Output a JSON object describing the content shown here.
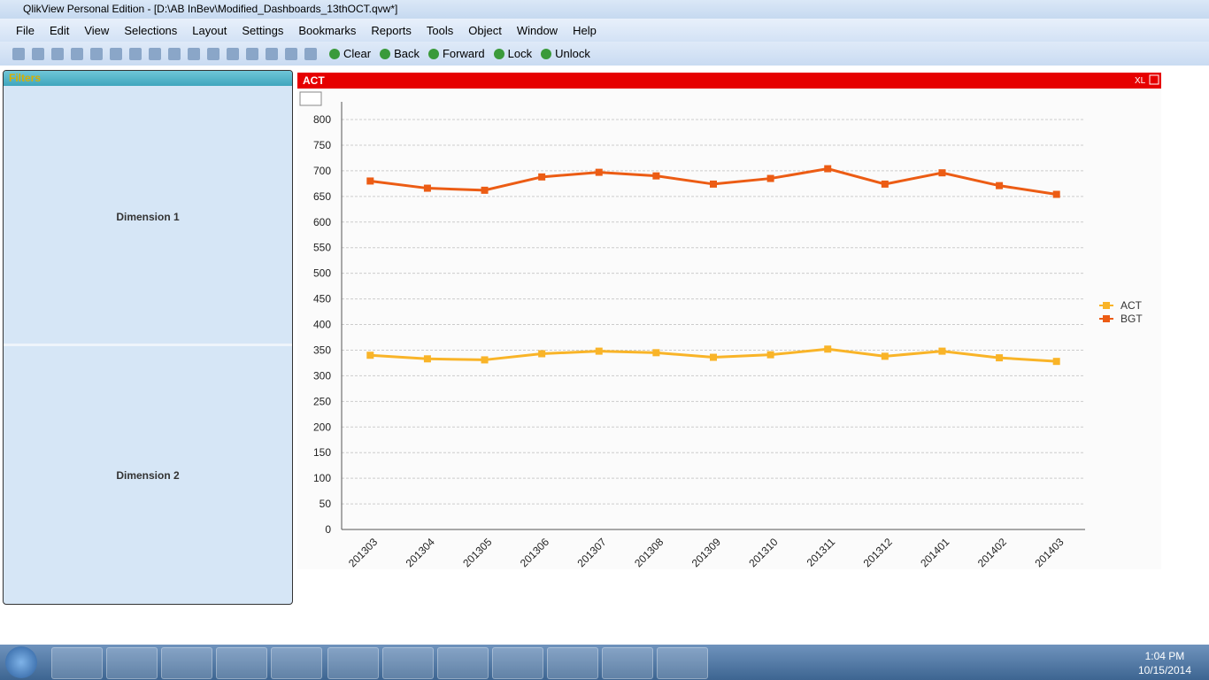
{
  "window": {
    "title": "QlikView Personal Edition - [D:\\AB InBev\\Modified_Dashboards_13thOCT.qvw*]"
  },
  "menu": [
    "File",
    "Edit",
    "View",
    "Selections",
    "Layout",
    "Settings",
    "Bookmarks",
    "Reports",
    "Tools",
    "Object",
    "Window",
    "Help"
  ],
  "toolbar": [
    "Clear",
    "Back",
    "Forward",
    "Lock",
    "Unlock"
  ],
  "filters": {
    "title": "Filters",
    "items": [
      "Dimension 1",
      "Dimension 2"
    ]
  },
  "chart_export": "XL",
  "chart_data": {
    "type": "line",
    "title": "ACT",
    "categories": [
      "201303",
      "201304",
      "201305",
      "201306",
      "201307",
      "201308",
      "201309",
      "201310",
      "201311",
      "201312",
      "201401",
      "201402",
      "201403"
    ],
    "series": [
      {
        "name": "ACT",
        "color": "#f9b428",
        "values": [
          340,
          333,
          331,
          343,
          348,
          345,
          336,
          341,
          352,
          338,
          348,
          335,
          328
        ]
      },
      {
        "name": "BGT",
        "color": "#ec5c14",
        "values": [
          680,
          666,
          662,
          688,
          697,
          690,
          674,
          685,
          704,
          674,
          696,
          671,
          654
        ]
      }
    ],
    "ylim": [
      0,
      800
    ],
    "yticks": [
      0,
      50,
      100,
      150,
      200,
      250,
      300,
      350,
      400,
      450,
      500,
      550,
      600,
      650,
      700,
      750,
      800
    ],
    "grid": true,
    "legend": "right"
  },
  "taskbar": {
    "time": "1:04 PM",
    "date": "10/15/2014"
  }
}
